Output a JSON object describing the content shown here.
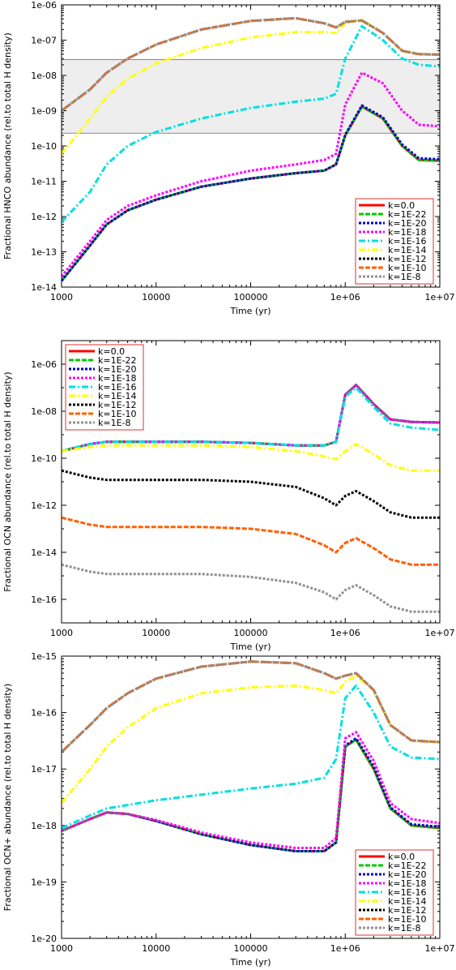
{
  "chart_data": [
    {
      "type": "line",
      "ylabel": "Fractional HNCO abundance (rel.to total H density)",
      "xlabel": "Time (yr)",
      "xscale": "log",
      "yscale": "log",
      "xlim": [
        1000,
        10000000
      ],
      "ylim": [
        1e-14,
        1e-06
      ],
      "xticks": [
        "1000",
        "10000",
        "100000",
        "1e+06",
        "1e+07"
      ],
      "yticks": [
        "1e-14",
        "1e-13",
        "1e-12",
        "1e-11",
        "1e-10",
        "1e-09",
        "1e-08",
        "1e-07",
        "1e-06"
      ],
      "legend_position": "bottom-right",
      "observed_band": [
        2.3e-10,
        2.8e-08
      ],
      "x": [
        1000,
        2000,
        3000,
        5000,
        10000,
        30000,
        100000,
        300000,
        600000,
        800000,
        1000000,
        1500000,
        2500000,
        4000000,
        6000000,
        10000000
      ],
      "series": [
        {
          "name": "k=0.0",
          "color": "#ff0000",
          "values": [
            1.5e-14,
            1.5e-13,
            6e-13,
            1.5e-12,
            3e-12,
            7e-12,
            1.2e-11,
            1.7e-11,
            2e-11,
            3e-11,
            2e-10,
            1.3e-09,
            6e-10,
            1e-10,
            4e-11,
            3.8e-11
          ]
        },
        {
          "name": "k=1E-22",
          "color": "#00c800",
          "values": [
            1.5e-14,
            1.5e-13,
            6e-13,
            1.5e-12,
            3e-12,
            7e-12,
            1.2e-11,
            1.7e-11,
            2e-11,
            3e-11,
            2e-10,
            1.3e-09,
            6e-10,
            1e-10,
            4e-11,
            3.8e-11
          ]
        },
        {
          "name": "k=1E-20",
          "color": "#0000cc",
          "values": [
            1.5e-14,
            1.5e-13,
            6e-13,
            1.5e-12,
            3e-12,
            7e-12,
            1.2e-11,
            1.7e-11,
            2e-11,
            3e-11,
            2.1e-10,
            1.4e-09,
            6.5e-10,
            1.1e-10,
            4.5e-11,
            4.2e-11
          ]
        },
        {
          "name": "k=1E-18",
          "color": "#ff00ff",
          "values": [
            2e-14,
            2e-13,
            8e-13,
            2e-12,
            4e-12,
            1e-11,
            2e-11,
            3e-11,
            4e-11,
            6e-11,
            1.5e-09,
            1.2e-08,
            6e-09,
            1e-09,
            4e-10,
            3.6e-10
          ]
        },
        {
          "name": "k=1E-16",
          "color": "#00e0e0",
          "values": [
            7e-13,
            5e-12,
            3e-11,
            1e-10,
            2.5e-10,
            6e-10,
            1.2e-09,
            1.8e-09,
            2.2e-09,
            3e-09,
            3e-08,
            2.5e-07,
            1e-07,
            3e-08,
            2e-08,
            1.8e-08
          ]
        },
        {
          "name": "k=1E-14",
          "color": "#ffff00",
          "values": [
            6e-11,
            6e-10,
            2.5e-09,
            8e-09,
            2.2e-08,
            6e-08,
            1.2e-07,
            1.7e-07,
            1.7e-07,
            1.6e-07,
            3e-07,
            3.8e-07,
            1.6e-07,
            5e-08,
            4e-08,
            3.9e-08
          ]
        },
        {
          "name": "k=1E-12",
          "color": "#000000",
          "values": [
            1e-09,
            4e-09,
            1.2e-08,
            3e-08,
            7.5e-08,
            2e-07,
            3.5e-07,
            4.2e-07,
            3e-07,
            2.3e-07,
            3.3e-07,
            3.6e-07,
            1.6e-07,
            5e-08,
            4e-08,
            3.9e-08
          ]
        },
        {
          "name": "k=1E-10",
          "color": "#ff6000",
          "values": [
            1e-09,
            4e-09,
            1.2e-08,
            3e-08,
            7.5e-08,
            2e-07,
            3.5e-07,
            4.2e-07,
            3e-07,
            2.3e-07,
            3.3e-07,
            3.6e-07,
            1.6e-07,
            5e-08,
            4e-08,
            3.9e-08
          ]
        },
        {
          "name": "k=1E-8",
          "color": "#909090",
          "values": [
            1e-09,
            4e-09,
            1.2e-08,
            3e-08,
            7.5e-08,
            2e-07,
            3.5e-07,
            4.2e-07,
            3e-07,
            2.3e-07,
            3.3e-07,
            3.6e-07,
            1.6e-07,
            5e-08,
            4e-08,
            3.9e-08
          ]
        }
      ]
    },
    {
      "type": "line",
      "ylabel": "Fractional OCN abundance (rel.to total H density)",
      "xlabel": "Time (yr)",
      "xscale": "log",
      "yscale": "log",
      "xlim": [
        1000,
        10000000
      ],
      "ylim": [
        1e-17,
        1e-05
      ],
      "xticks": [
        "1000",
        "10000",
        "100000",
        "1e+06",
        "1e+07"
      ],
      "yticks": [
        "1e-16",
        "1e-14",
        "1e-12",
        "1e-10",
        "1e-08",
        "1e-06"
      ],
      "legend_position": "top-left",
      "x": [
        1000,
        2000,
        3000,
        5000,
        10000,
        30000,
        100000,
        300000,
        600000,
        800000,
        1000000,
        1300000,
        2000000,
        3000000,
        5000000,
        10000000
      ],
      "series": [
        {
          "name": "k=0.0",
          "color": "#ff0000",
          "values": [
            2e-10,
            4e-10,
            5e-10,
            5e-10,
            5e-10,
            5e-10,
            4.5e-10,
            3.5e-10,
            3.5e-10,
            5e-10,
            5e-08,
            1.3e-07,
            2e-08,
            4.5e-09,
            3.5e-09,
            3.3e-09
          ]
        },
        {
          "name": "k=1E-22",
          "color": "#00c800",
          "values": [
            2e-10,
            4e-10,
            5e-10,
            5e-10,
            5e-10,
            5e-10,
            4.5e-10,
            3.5e-10,
            3.5e-10,
            5e-10,
            5e-08,
            1.3e-07,
            2e-08,
            4.5e-09,
            3.5e-09,
            3.3e-09
          ]
        },
        {
          "name": "k=1E-20",
          "color": "#0000cc",
          "values": [
            2e-10,
            4e-10,
            5e-10,
            5e-10,
            5e-10,
            5e-10,
            4.5e-10,
            3.5e-10,
            3.5e-10,
            5e-10,
            5e-08,
            1.3e-07,
            2e-08,
            4.5e-09,
            3.5e-09,
            3.3e-09
          ]
        },
        {
          "name": "k=1E-18",
          "color": "#ff00ff",
          "values": [
            2e-10,
            4e-10,
            5e-10,
            5e-10,
            5e-10,
            5e-10,
            4.5e-10,
            3.5e-10,
            3.5e-10,
            5e-10,
            5e-08,
            1.3e-07,
            2e-08,
            4.5e-09,
            3.5e-09,
            3.3e-09
          ]
        },
        {
          "name": "k=1E-16",
          "color": "#00e0e0",
          "values": [
            2e-10,
            4e-10,
            5e-10,
            5e-10,
            5e-10,
            5e-10,
            4.5e-10,
            3.5e-10,
            3.5e-10,
            5e-10,
            4e-08,
            1e-07,
            1.5e-08,
            3e-09,
            2e-09,
            1.6e-09
          ]
        },
        {
          "name": "k=1E-14",
          "color": "#ffff00",
          "values": [
            2e-10,
            3e-10,
            3.5e-10,
            3.5e-10,
            3.5e-10,
            3.5e-10,
            3e-10,
            2e-10,
            1.2e-10,
            9e-11,
            2e-10,
            4e-10,
            1.5e-10,
            5e-11,
            3e-11,
            3e-11
          ]
        },
        {
          "name": "k=1E-12",
          "color": "#000000",
          "values": [
            3e-11,
            1.5e-11,
            1.2e-11,
            1.2e-11,
            1.2e-11,
            1.2e-11,
            1e-11,
            6e-12,
            2e-12,
            1e-12,
            2.5e-12,
            4e-12,
            1.5e-12,
            5e-13,
            3e-13,
            3e-13
          ]
        },
        {
          "name": "k=1E-10",
          "color": "#ff6000",
          "values": [
            3e-13,
            1.5e-13,
            1.2e-13,
            1.2e-13,
            1.2e-13,
            1.2e-13,
            1e-13,
            6e-14,
            2e-14,
            1e-14,
            2.5e-14,
            4e-14,
            1.5e-14,
            5e-15,
            3e-15,
            3e-15
          ]
        },
        {
          "name": "k=1E-8",
          "color": "#909090",
          "values": [
            3e-15,
            1.5e-15,
            1.2e-15,
            1.2e-15,
            1.2e-15,
            1.2e-15,
            9e-16,
            5e-16,
            2e-16,
            1e-16,
            2.5e-16,
            4e-16,
            1.5e-16,
            5e-17,
            3e-17,
            3e-17
          ]
        }
      ]
    },
    {
      "type": "line",
      "ylabel": "Fractional OCN+ abundance (rel.to total H density)",
      "xlabel": "Time (yr)",
      "xscale": "log",
      "yscale": "log",
      "xlim": [
        1000,
        10000000
      ],
      "ylim": [
        1e-20,
        1e-15
      ],
      "xticks": [
        "1000",
        "10000",
        "100000",
        "1e+06",
        "1e+07"
      ],
      "yticks": [
        "1e-20",
        "1e-19",
        "1e-18",
        "1e-17",
        "1e-16",
        "1e-15"
      ],
      "legend_position": "bottom-right",
      "x": [
        1000,
        2000,
        3000,
        5000,
        10000,
        30000,
        100000,
        300000,
        600000,
        800000,
        1000000,
        1300000,
        2000000,
        3000000,
        5000000,
        10000000
      ],
      "series": [
        {
          "name": "k=0.0",
          "color": "#ff0000",
          "values": [
            8e-19,
            1.3e-18,
            1.7e-18,
            1.6e-18,
            1.2e-18,
            7e-19,
            4.5e-19,
            3.5e-19,
            3.5e-19,
            5e-19,
            2.5e-17,
            3.3e-17,
            1e-17,
            2e-18,
            1e-18,
            9e-19
          ]
        },
        {
          "name": "k=1E-22",
          "color": "#00c800",
          "values": [
            8e-19,
            1.3e-18,
            1.7e-18,
            1.6e-18,
            1.2e-18,
            7e-19,
            4.5e-19,
            3.5e-19,
            3.5e-19,
            5e-19,
            2.5e-17,
            3.3e-17,
            1e-17,
            2e-18,
            1e-18,
            9e-19
          ]
        },
        {
          "name": "k=1E-20",
          "color": "#0000cc",
          "values": [
            8e-19,
            1.3e-18,
            1.7e-18,
            1.6e-18,
            1.2e-18,
            7e-19,
            4.5e-19,
            3.5e-19,
            3.5e-19,
            5e-19,
            2.6e-17,
            3.5e-17,
            1.1e-17,
            2.1e-18,
            1.05e-18,
            9.5e-19
          ]
        },
        {
          "name": "k=1E-18",
          "color": "#ff00ff",
          "values": [
            8e-19,
            1.3e-18,
            1.7e-18,
            1.6e-18,
            1.25e-18,
            7.5e-19,
            5e-19,
            4e-19,
            4e-19,
            6e-19,
            3.5e-17,
            4.5e-17,
            1.4e-17,
            2.5e-18,
            1.3e-18,
            1.1e-18
          ]
        },
        {
          "name": "k=1E-16",
          "color": "#00e0e0",
          "values": [
            9e-19,
            1.5e-18,
            2e-18,
            2.3e-18,
            2.8e-18,
            3.5e-18,
            4.5e-18,
            5.5e-18,
            7e-18,
            1.5e-17,
            1.8e-16,
            3e-16,
            1e-16,
            2.5e-17,
            1.6e-17,
            1.5e-17
          ]
        },
        {
          "name": "k=1E-14",
          "color": "#ffff00",
          "values": [
            2.5e-18,
            1e-17,
            2.5e-17,
            5.5e-17,
            1.2e-16,
            2.2e-16,
            2.8e-16,
            3e-16,
            2.5e-16,
            2.2e-16,
            3.5e-16,
            4.5e-16,
            2.5e-16,
            6e-17,
            3.2e-17,
            3e-17
          ]
        },
        {
          "name": "k=1E-12",
          "color": "#000000",
          "values": [
            2e-17,
            6e-17,
            1.2e-16,
            2.2e-16,
            4e-16,
            6.5e-16,
            8e-16,
            7.5e-16,
            5e-16,
            4e-16,
            4.5e-16,
            5e-16,
            2.5e-16,
            6e-17,
            3.2e-17,
            3e-17
          ]
        },
        {
          "name": "k=1E-10",
          "color": "#ff6000",
          "values": [
            2e-17,
            6e-17,
            1.2e-16,
            2.2e-16,
            4e-16,
            6.5e-16,
            8e-16,
            7.5e-16,
            5e-16,
            4e-16,
            4.5e-16,
            5e-16,
            2.5e-16,
            6e-17,
            3.2e-17,
            3e-17
          ]
        },
        {
          "name": "k=1E-8",
          "color": "#909090",
          "values": [
            2e-17,
            6e-17,
            1.2e-16,
            2.2e-16,
            4e-16,
            6.5e-16,
            8e-16,
            7.5e-16,
            5e-16,
            4e-16,
            4.5e-16,
            5e-16,
            2.5e-16,
            6e-17,
            3.2e-17,
            3e-17
          ]
        }
      ]
    }
  ]
}
